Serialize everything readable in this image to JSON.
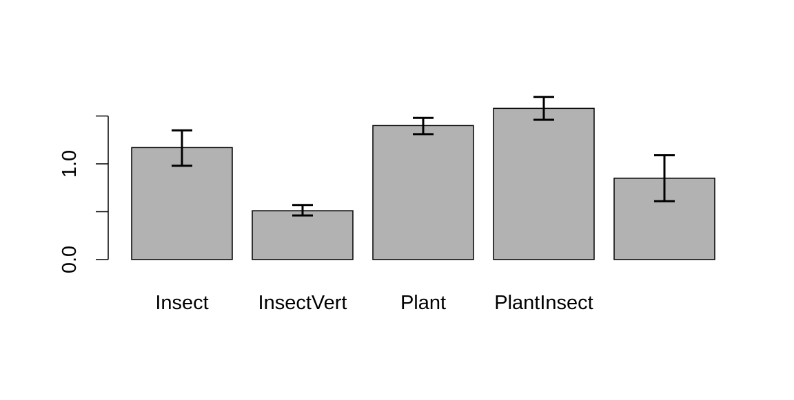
{
  "chart_data": {
    "type": "bar",
    "categories": [
      "Insect",
      "InsectVert",
      "Plant",
      "PlantInsect",
      ""
    ],
    "values": [
      1.17,
      0.51,
      1.4,
      1.58,
      0.85
    ],
    "error_low": [
      0.98,
      0.46,
      1.31,
      1.46,
      0.61
    ],
    "error_high": [
      1.35,
      0.57,
      1.48,
      1.7,
      1.09
    ],
    "ylim": [
      0,
      1.5
    ],
    "y_ticks": [
      0,
      0.5,
      1.0,
      1.5
    ],
    "y_tick_labels": [
      "0.0",
      "",
      "1.0",
      ""
    ],
    "title": "",
    "xlabel": "",
    "ylabel": "",
    "grid": false,
    "colors": {
      "bar_fill": "#b2b2b2",
      "bar_stroke": "#000000",
      "error_bar": "#000000",
      "axis": "#000000"
    }
  }
}
